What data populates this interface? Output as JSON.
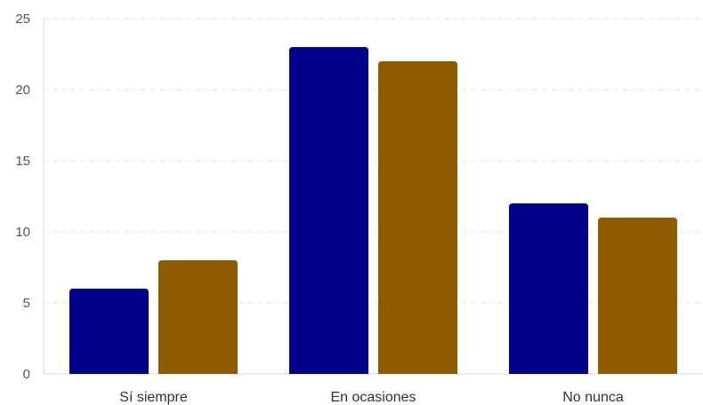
{
  "chart_data": {
    "type": "bar",
    "categories": [
      "Sí siempre",
      "En ocasiones",
      "No nunca"
    ],
    "series": [
      {
        "values": [
          6,
          23,
          12
        ],
        "color": "#00008b"
      },
      {
        "values": [
          8,
          22,
          11
        ],
        "color": "#8f5b00"
      }
    ],
    "ylim": [
      0,
      25
    ],
    "yticks": [
      0,
      5,
      10,
      15,
      20,
      25
    ],
    "grid": true,
    "legend": "none"
  }
}
